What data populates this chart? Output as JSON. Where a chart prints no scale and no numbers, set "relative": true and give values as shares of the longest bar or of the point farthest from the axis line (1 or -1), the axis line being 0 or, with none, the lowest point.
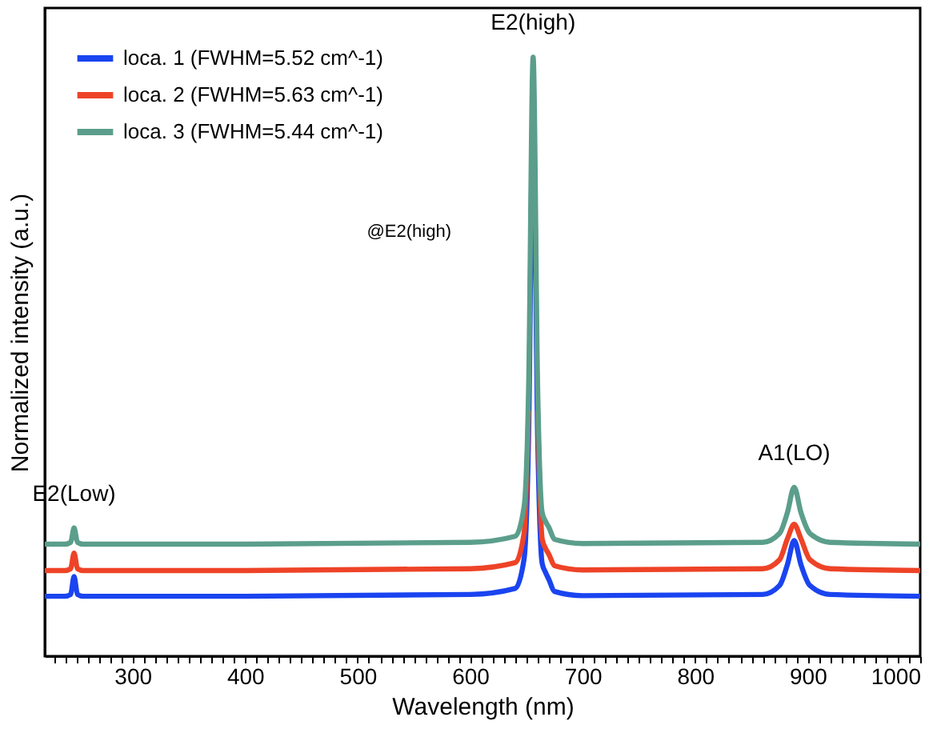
{
  "chart_data": {
    "type": "line",
    "relative": true,
    "xlabel": "Wavelength (nm)",
    "ylabel": "Normalized intensity (a.u.)",
    "x": [
      222,
      240,
      245,
      248,
      251,
      256,
      400,
      600,
      640,
      648,
      652,
      656,
      660,
      664,
      667,
      670,
      675,
      700,
      860,
      875,
      882,
      888,
      894,
      902,
      920,
      1000
    ],
    "series": [
      {
        "name": "loca. 1 (FWHM=5.52 cm^-1)",
        "color": "#1a44f0",
        "values": [
          0.1,
          0.1,
          0.103,
          0.133,
          0.103,
          0.1,
          0.1,
          0.103,
          0.113,
          0.163,
          0.37,
          0.92,
          0.37,
          0.155,
          0.14,
          0.128,
          0.108,
          0.101,
          0.103,
          0.118,
          0.153,
          0.193,
          0.153,
          0.118,
          0.103,
          0.1
        ]
      },
      {
        "name": "loca. 2 (FWHM=5.63 cm^-1)",
        "color": "#ee4327",
        "values": [
          0.143,
          0.143,
          0.146,
          0.172,
          0.146,
          0.143,
          0.143,
          0.146,
          0.156,
          0.206,
          0.41,
          null,
          0.41,
          0.196,
          0.18,
          0.17,
          0.151,
          0.144,
          0.146,
          0.161,
          0.196,
          0.22,
          0.196,
          0.161,
          0.146,
          0.143
        ]
      },
      {
        "name": "loca. 3 (FWHM=5.44 cm^-1)",
        "color": "#5b9e8b",
        "values": [
          0.187,
          0.187,
          0.19,
          0.214,
          0.19,
          0.187,
          0.187,
          0.19,
          0.2,
          0.25,
          0.45,
          1.0,
          0.45,
          0.24,
          0.225,
          0.215,
          0.195,
          0.188,
          0.19,
          0.205,
          0.24,
          0.282,
          0.24,
          0.205,
          0.19,
          0.187
        ]
      }
    ],
    "xlim": [
      222,
      1000
    ],
    "xticks": [
      {
        "value": 230,
        "label": null
      },
      {
        "value": 240,
        "label": null
      },
      {
        "value": 250,
        "label": null
      },
      {
        "value": 260,
        "label": null
      },
      {
        "value": 270,
        "label": null
      },
      {
        "value": 280,
        "label": null
      },
      {
        "value": 290,
        "label": null
      },
      300,
      {
        "value": 310,
        "label": null
      },
      {
        "value": 320,
        "label": null
      },
      {
        "value": 330,
        "label": null
      },
      {
        "value": 340,
        "label": null
      },
      {
        "value": 350,
        "label": null
      },
      {
        "value": 360,
        "label": null
      },
      {
        "value": 370,
        "label": null
      },
      {
        "value": 380,
        "label": null
      },
      {
        "value": 390,
        "label": null
      },
      400,
      {
        "value": 410,
        "label": null
      },
      {
        "value": 420,
        "label": null
      },
      {
        "value": 430,
        "label": null
      },
      {
        "value": 440,
        "label": null
      },
      {
        "value": 450,
        "label": null
      },
      {
        "value": 460,
        "label": null
      },
      {
        "value": 470,
        "label": null
      },
      {
        "value": 480,
        "label": null
      },
      {
        "value": 490,
        "label": null
      },
      500,
      {
        "value": 510,
        "label": null
      },
      {
        "value": 520,
        "label": null
      },
      {
        "value": 530,
        "label": null
      },
      {
        "value": 540,
        "label": null
      },
      {
        "value": 550,
        "label": null
      },
      {
        "value": 560,
        "label": null
      },
      {
        "value": 570,
        "label": null
      },
      {
        "value": 580,
        "label": null
      },
      {
        "value": 590,
        "label": null
      },
      600,
      {
        "value": 610,
        "label": null
      },
      {
        "value": 620,
        "label": null
      },
      {
        "value": 630,
        "label": null
      },
      {
        "value": 640,
        "label": null
      },
      {
        "value": 650,
        "label": null
      },
      {
        "value": 660,
        "label": null
      },
      {
        "value": 670,
        "label": null
      },
      {
        "value": 680,
        "label": null
      },
      {
        "value": 690,
        "label": null
      },
      700,
      {
        "value": 710,
        "label": null
      },
      {
        "value": 720,
        "label": null
      },
      {
        "value": 730,
        "label": null
      },
      {
        "value": 740,
        "label": null
      },
      {
        "value": 750,
        "label": null
      },
      {
        "value": 760,
        "label": null
      },
      {
        "value": 770,
        "label": null
      },
      {
        "value": 780,
        "label": null
      },
      {
        "value": 790,
        "label": null
      },
      800,
      {
        "value": 810,
        "label": null
      },
      {
        "value": 820,
        "label": null
      },
      {
        "value": 830,
        "label": null
      },
      {
        "value": 840,
        "label": null
      },
      {
        "value": 850,
        "label": null
      },
      {
        "value": 860,
        "label": null
      },
      {
        "value": 870,
        "label": null
      },
      {
        "value": 880,
        "label": null
      },
      {
        "value": 890,
        "label": null
      },
      900,
      {
        "value": 910,
        "label": null
      },
      {
        "value": 920,
        "label": null
      },
      {
        "value": 930,
        "label": null
      },
      {
        "value": 940,
        "label": null
      },
      {
        "value": 950,
        "label": null
      },
      {
        "value": 960,
        "label": null
      },
      {
        "value": 970,
        "label": null
      },
      {
        "value": 980,
        "label": null
      },
      {
        "value": 990,
        "label": null
      },
      1000
    ],
    "annotations": [
      {
        "text": "E2(Low)",
        "x": 248,
        "y": 0.214
      },
      {
        "text": "E2(high)",
        "x": 656,
        "y": 1.0
      },
      {
        "text": "A1(LO)",
        "x": 888,
        "y": 0.282
      },
      "@E2(high)"
    ],
    "legend": "top left",
    "grid": false,
    "line_style": "solid",
    "marker": "none"
  }
}
